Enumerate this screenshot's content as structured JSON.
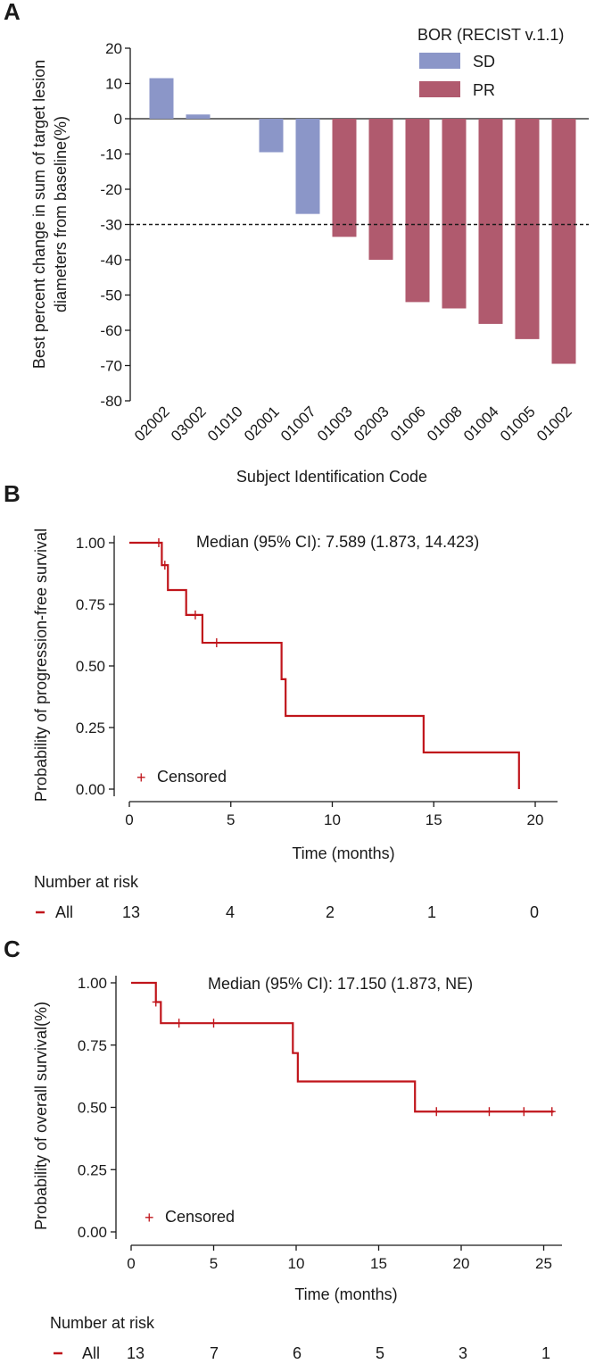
{
  "colors": {
    "sd": "#8b96c8",
    "pr": "#b05a6e",
    "km": "#c0151b",
    "axis": "#1a1a1a"
  },
  "chart_data": [
    {
      "panel": "A",
      "type": "bar",
      "ylabel_lines": [
        "Best percent change in sum of target lesion",
        "diameters from baseline(%)"
      ],
      "xlabel": "Subject Identification Code",
      "ylim": [
        -80,
        20
      ],
      "yticks": [
        20,
        10,
        0,
        -10,
        -20,
        -30,
        -40,
        -50,
        -60,
        -70,
        -80
      ],
      "reference_line": -30,
      "legend": {
        "title": "BOR (RECIST v.1.1)",
        "placement": "top-right",
        "items": [
          {
            "label": "SD",
            "color": "#8b96c8"
          },
          {
            "label": "PR",
            "color": "#b05a6e"
          }
        ]
      },
      "categories": [
        "02002",
        "03002",
        "01010",
        "02001",
        "01007",
        "01003",
        "02003",
        "01006",
        "01008",
        "01004",
        "01005",
        "01002"
      ],
      "values": [
        11.5,
        1.2,
        0,
        -9.5,
        -27,
        -33.5,
        -40,
        -52,
        -53.8,
        -58.2,
        -62.5,
        -69.5
      ],
      "response": [
        "SD",
        "SD",
        "SD",
        "SD",
        "SD",
        "PR",
        "PR",
        "PR",
        "PR",
        "PR",
        "PR",
        "PR"
      ]
    },
    {
      "panel": "B",
      "type": "line",
      "subtype": "kaplan-meier",
      "ylabel": "Probability of progression-free survival",
      "xlabel": "Time (months)",
      "xlim": [
        0,
        21
      ],
      "ylim": [
        0,
        1
      ],
      "xticks": [
        0,
        5,
        10,
        15,
        20
      ],
      "yticks": [
        "0.00",
        "0.25",
        "0.50",
        "0.75",
        "1.00"
      ],
      "annotation": "Median (95% CI): 7.589 (1.873, 14.423)",
      "legend_label": "Censored",
      "steps": [
        [
          0,
          1.0
        ],
        [
          1.6,
          0.909
        ],
        [
          1.9,
          0.808
        ],
        [
          2.8,
          0.707
        ],
        [
          3.6,
          0.594
        ],
        [
          7.5,
          0.446
        ],
        [
          7.7,
          0.297
        ],
        [
          14.5,
          0.149
        ],
        [
          19.2,
          0.0
        ]
      ],
      "censored": [
        [
          1.45,
          1.0
        ],
        [
          1.75,
          0.909
        ],
        [
          3.25,
          0.707
        ],
        [
          4.3,
          0.594
        ]
      ],
      "risk_table": {
        "title": "Number at risk",
        "group": "All",
        "counts": [
          "13",
          "4",
          "2",
          "1",
          "0"
        ]
      }
    },
    {
      "panel": "C",
      "type": "line",
      "subtype": "kaplan-meier",
      "ylabel": "Probability of overall survival(%)",
      "xlabel": "Time (months)",
      "xlim": [
        0,
        26
      ],
      "ylim": [
        0,
        1
      ],
      "xticks": [
        0,
        5,
        10,
        15,
        20,
        25
      ],
      "yticks": [
        "0.00",
        "0.25",
        "0.50",
        "0.75",
        "1.00"
      ],
      "annotation": "Median (95% CI): 17.150 (1.873, NE)",
      "legend_label": "Censored",
      "steps": [
        [
          0,
          1.0
        ],
        [
          1.5,
          0.923
        ],
        [
          1.8,
          0.838
        ],
        [
          9.8,
          0.718
        ],
        [
          10.1,
          0.604
        ],
        [
          17.2,
          0.483
        ],
        [
          25.6,
          0.483
        ]
      ],
      "censored": [
        [
          1.5,
          0.923
        ],
        [
          2.9,
          0.838
        ],
        [
          5.0,
          0.838
        ],
        [
          18.5,
          0.483
        ],
        [
          21.7,
          0.483
        ],
        [
          23.8,
          0.483
        ],
        [
          25.5,
          0.483
        ]
      ],
      "risk_table": {
        "title": "Number at risk",
        "group": "All",
        "counts": [
          "13",
          "7",
          "6",
          "5",
          "3",
          "1"
        ]
      }
    }
  ]
}
